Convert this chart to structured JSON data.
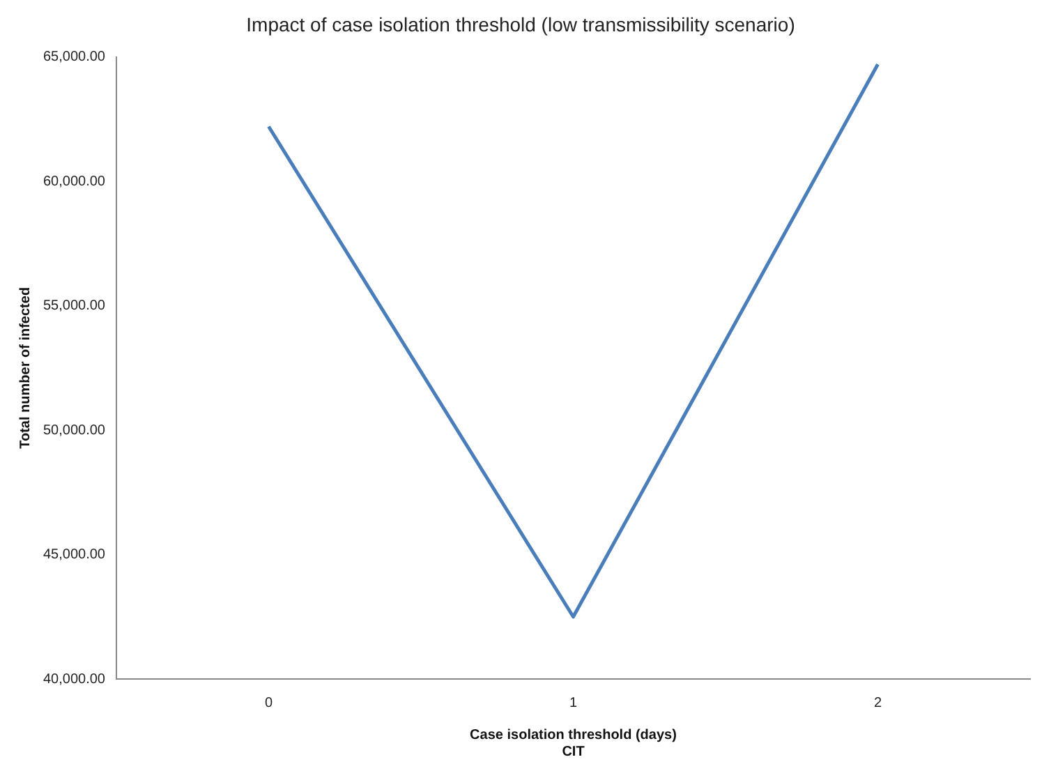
{
  "chart_data": {
    "type": "line",
    "title": "Impact of case isolation threshold (low transmissibility scenario)",
    "xlabel": "Case isolation threshold (days)\nCIT",
    "ylabel": "Total number of infected",
    "categories": [
      "0",
      "1",
      "2"
    ],
    "series": [
      {
        "color": "#4a7ebb",
        "values": [
          62200,
          42500,
          64700
        ]
      }
    ],
    "ylim": [
      40000,
      65000
    ],
    "yticks": [
      {
        "value": 40000,
        "label": "40,000.00"
      },
      {
        "value": 45000,
        "label": "45,000.00"
      },
      {
        "value": 50000,
        "label": "50,000.00"
      },
      {
        "value": 55000,
        "label": "55,000.00"
      },
      {
        "value": 60000,
        "label": "60,000.00"
      },
      {
        "value": 65000,
        "label": "65,000.00"
      }
    ],
    "grid": false,
    "legend": false,
    "marker": "none",
    "line_style": "solid"
  }
}
